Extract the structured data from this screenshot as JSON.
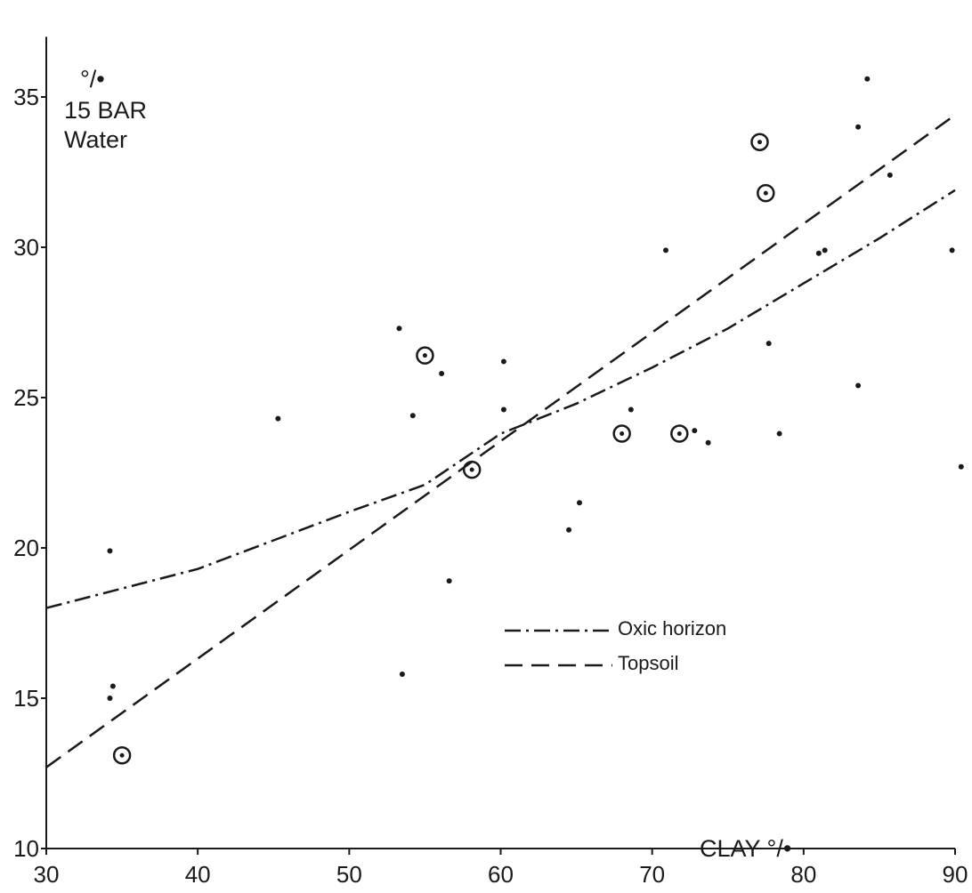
{
  "chart_data": {
    "type": "scatter",
    "title": "",
    "xlabel": "CLAY °/•",
    "ylabel_lines": [
      "°/•",
      "15 BAR",
      "Water"
    ],
    "xlim": [
      30,
      90
    ],
    "ylim": [
      10,
      37
    ],
    "xticks": [
      30,
      40,
      50,
      60,
      70,
      80,
      90
    ],
    "yticks": [
      10,
      15,
      20,
      25,
      30,
      35
    ],
    "grid": false,
    "legend_position": "center-right",
    "series": [
      {
        "marker": "dot",
        "points": [
          [
            34.2,
            19.9
          ],
          [
            34.2,
            15.0
          ],
          [
            34.4,
            15.4
          ],
          [
            45.3,
            24.3
          ],
          [
            53.3,
            27.3
          ],
          [
            53.5,
            15.8
          ],
          [
            54.2,
            24.4
          ],
          [
            56.1,
            25.8
          ],
          [
            56.6,
            18.9
          ],
          [
            60.2,
            26.2
          ],
          [
            60.2,
            24.6
          ],
          [
            64.5,
            20.6
          ],
          [
            65.2,
            21.5
          ],
          [
            68.6,
            24.6
          ],
          [
            70.9,
            29.9
          ],
          [
            72.8,
            23.9
          ],
          [
            73.7,
            23.5
          ],
          [
            77.7,
            26.8
          ],
          [
            78.4,
            23.8
          ],
          [
            81.0,
            29.8
          ],
          [
            81.4,
            29.9
          ],
          [
            83.6,
            34.0
          ],
          [
            83.6,
            25.4
          ],
          [
            84.2,
            35.6
          ],
          [
            85.7,
            32.4
          ],
          [
            89.8,
            29.9
          ],
          [
            90.4,
            22.7
          ]
        ]
      },
      {
        "marker": "circled-dot",
        "points": [
          [
            35.0,
            13.1
          ],
          [
            55.0,
            26.4
          ],
          [
            58.1,
            22.6
          ],
          [
            68.0,
            23.8
          ],
          [
            71.8,
            23.8
          ],
          [
            77.1,
            33.5
          ],
          [
            77.5,
            31.8
          ]
        ]
      },
      {
        "name": "Oxic horizon",
        "style": "dash-dot",
        "curve": [
          [
            30,
            18.0
          ],
          [
            40,
            19.3
          ],
          [
            50,
            21.2
          ],
          [
            55,
            22.1
          ],
          [
            60,
            23.8
          ],
          [
            65,
            24.8
          ],
          [
            70,
            26.0
          ],
          [
            75,
            27.3
          ],
          [
            80,
            28.8
          ],
          [
            85,
            30.3
          ],
          [
            90,
            31.9
          ]
        ]
      },
      {
        "name": "Topsoil",
        "style": "dashed",
        "curve": [
          [
            30,
            12.7
          ],
          [
            90,
            34.4
          ]
        ]
      }
    ]
  }
}
